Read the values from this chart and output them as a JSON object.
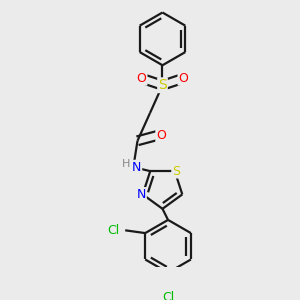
{
  "background_color": "#ebebeb",
  "bond_color": "#1a1a1a",
  "atom_colors": {
    "S": "#cccc00",
    "O": "#ff0000",
    "N": "#0000ff",
    "Cl": "#00bb00",
    "H": "#888888"
  },
  "bond_width": 1.6,
  "figsize": [
    3.0,
    3.0
  ],
  "dpi": 100
}
